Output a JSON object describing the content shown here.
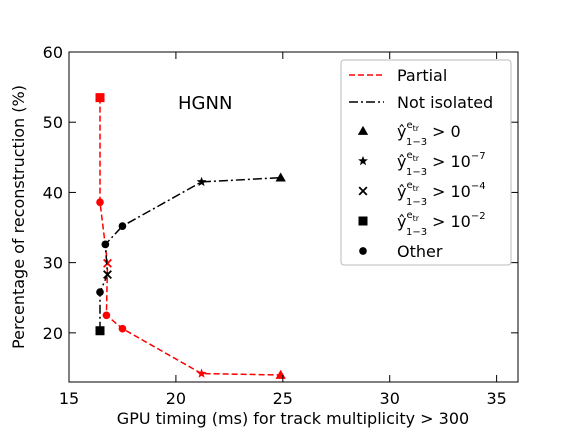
{
  "chart_data": {
    "type": "line",
    "xlabel": "GPU timing (ms) for track multiplicity > 300",
    "ylabel": "Percentage of reconstruction (%)",
    "xlim": [
      15,
      36
    ],
    "ylim": [
      13,
      60
    ],
    "xticks": [
      15,
      20,
      25,
      30,
      35
    ],
    "yticks": [
      20,
      30,
      40,
      50,
      60
    ],
    "annotation": "HGNN",
    "legend_position": "top-right",
    "series": [
      {
        "name": "Partial",
        "color": "#ff0000",
        "linestyle": "dashed",
        "points": [
          {
            "x": 16.45,
            "y": 53.5,
            "marker": "square"
          },
          {
            "x": 16.45,
            "y": 38.6,
            "marker": "circle"
          },
          {
            "x": 16.8,
            "y": 29.9,
            "marker": "x"
          },
          {
            "x": 16.75,
            "y": 22.5,
            "marker": "circle"
          },
          {
            "x": 17.5,
            "y": 20.6,
            "marker": "circle"
          },
          {
            "x": 21.2,
            "y": 14.2,
            "marker": "star"
          },
          {
            "x": 24.9,
            "y": 14.0,
            "marker": "triangle"
          }
        ]
      },
      {
        "name": "Not isolated",
        "color": "#000000",
        "linestyle": "dashdot",
        "points": [
          {
            "x": 16.45,
            "y": 20.3,
            "marker": "square"
          },
          {
            "x": 16.45,
            "y": 25.8,
            "marker": "circle"
          },
          {
            "x": 16.8,
            "y": 28.3,
            "marker": "x"
          },
          {
            "x": 16.7,
            "y": 32.6,
            "marker": "circle"
          },
          {
            "x": 17.5,
            "y": 35.2,
            "marker": "circle"
          },
          {
            "x": 21.2,
            "y": 41.5,
            "marker": "star"
          },
          {
            "x": 24.9,
            "y": 42.1,
            "marker": "triangle"
          }
        ]
      }
    ],
    "marker_legend": [
      {
        "marker": "triangle",
        "label": "> 0",
        "exponent": ""
      },
      {
        "marker": "star",
        "label": "> 10",
        "exponent": "−7"
      },
      {
        "marker": "x",
        "label": "> 10",
        "exponent": "−4"
      },
      {
        "marker": "square",
        "label": "> 10",
        "exponent": "−2"
      },
      {
        "marker": "circle",
        "label": "Other",
        "exponent": ""
      }
    ],
    "marker_legend_symbol": {
      "base": "ŷ",
      "sup": "e",
      "sup_sub": "tr",
      "sub": "1−3"
    }
  }
}
